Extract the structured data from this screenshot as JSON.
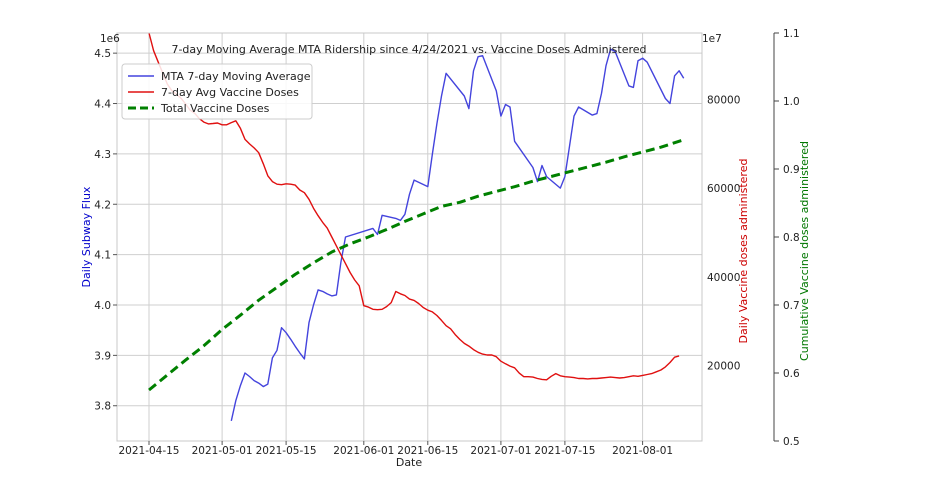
{
  "chart_data": {
    "type": "line",
    "title": "7-day Moving Average MTA Ridership since 4/24/2021 vs. Vaccine Doses Administered",
    "xlabel": "Date",
    "x_ticks": [
      "2021-04-15",
      "2021-05-01",
      "2021-05-15",
      "2021-06-01",
      "2021-06-15",
      "2021-07-01",
      "2021-07-15",
      "2021-08-01"
    ],
    "x_range": [
      "2021-04-08",
      "2021-08-14"
    ],
    "grid": true,
    "legend_position": "top-left",
    "axes": {
      "left": {
        "label": "Daily Subway Flux",
        "color": "#0000cc",
        "offset_label": "1e6",
        "range": [
          3.73,
          4.54
        ],
        "ticks": [
          3.8,
          3.9,
          4.0,
          4.1,
          4.2,
          4.3,
          4.4,
          4.5
        ],
        "tick_labels": [
          "3.8",
          "3.9",
          "4.0",
          "4.1",
          "4.2",
          "4.3",
          "4.4",
          "4.5"
        ]
      },
      "right1": {
        "label": "Daily Vaccine doses administered",
        "color": "#cc0000",
        "offset_label": "1e7",
        "range": [
          3000,
          95000
        ],
        "ticks": [
          20000,
          40000,
          60000,
          80000
        ],
        "tick_labels": [
          "20000",
          "40000",
          "60000",
          "80000"
        ]
      },
      "right2": {
        "label": "Cumulative Vaccine doses administered",
        "color": "#007700",
        "range": [
          0.5,
          1.1
        ],
        "ticks": [
          0.5,
          0.6,
          0.7,
          0.8,
          0.9,
          1.0,
          1.1
        ],
        "tick_labels": [
          "0.5",
          "0.6",
          "0.7",
          "0.8",
          "0.9",
          "1.0",
          "1.1"
        ]
      }
    },
    "series": [
      {
        "name": "MTA 7-day Moving Average",
        "axis": "left",
        "color": "#4444dd",
        "dash": "",
        "width": 1.4,
        "points": [
          [
            "2021-05-03",
            3.77
          ],
          [
            "2021-05-04",
            3.81
          ],
          [
            "2021-05-05",
            3.84
          ],
          [
            "2021-05-06",
            3.865
          ],
          [
            "2021-05-07",
            3.858
          ],
          [
            "2021-05-08",
            3.85
          ],
          [
            "2021-05-09",
            3.845
          ],
          [
            "2021-05-10",
            3.838
          ],
          [
            "2021-05-11",
            3.843
          ],
          [
            "2021-05-12",
            3.895
          ],
          [
            "2021-05-13",
            3.91
          ],
          [
            "2021-05-14",
            3.955
          ],
          [
            "2021-05-15",
            3.945
          ],
          [
            "2021-05-16",
            3.932
          ],
          [
            "2021-05-17",
            3.918
          ],
          [
            "2021-05-18",
            3.905
          ],
          [
            "2021-05-19",
            3.893
          ],
          [
            "2021-05-20",
            3.965
          ],
          [
            "2021-05-21",
            4.0
          ],
          [
            "2021-05-22",
            4.03
          ],
          [
            "2021-05-23",
            4.027
          ],
          [
            "2021-05-24",
            4.022
          ],
          [
            "2021-05-25",
            4.018
          ],
          [
            "2021-05-26",
            4.02
          ],
          [
            "2021-05-27",
            4.085
          ],
          [
            "2021-05-28",
            4.135
          ],
          [
            "2021-06-03",
            4.152
          ],
          [
            "2021-06-04",
            4.14
          ],
          [
            "2021-06-05",
            4.178
          ],
          [
            "2021-06-08",
            4.172
          ],
          [
            "2021-06-09",
            4.168
          ],
          [
            "2021-06-10",
            4.18
          ],
          [
            "2021-06-11",
            4.22
          ],
          [
            "2021-06-12",
            4.248
          ],
          [
            "2021-06-15",
            4.235
          ],
          [
            "2021-06-16",
            4.3
          ],
          [
            "2021-06-17",
            4.36
          ],
          [
            "2021-06-18",
            4.415
          ],
          [
            "2021-06-19",
            4.46
          ],
          [
            "2021-06-23",
            4.415
          ],
          [
            "2021-06-24",
            4.39
          ],
          [
            "2021-06-25",
            4.465
          ],
          [
            "2021-06-26",
            4.493
          ],
          [
            "2021-06-27",
            4.495
          ],
          [
            "2021-06-30",
            4.425
          ],
          [
            "2021-07-01",
            4.375
          ],
          [
            "2021-07-02",
            4.398
          ],
          [
            "2021-07-03",
            4.393
          ],
          [
            "2021-07-04",
            4.325
          ],
          [
            "2021-07-08",
            4.273
          ],
          [
            "2021-07-09",
            4.245
          ],
          [
            "2021-07-10",
            4.277
          ],
          [
            "2021-07-11",
            4.255
          ],
          [
            "2021-07-14",
            4.232
          ],
          [
            "2021-07-15",
            4.255
          ],
          [
            "2021-07-16",
            4.315
          ],
          [
            "2021-07-17",
            4.375
          ],
          [
            "2021-07-18",
            4.393
          ],
          [
            "2021-07-21",
            4.377
          ],
          [
            "2021-07-22",
            4.38
          ],
          [
            "2021-07-23",
            4.42
          ],
          [
            "2021-07-24",
            4.475
          ],
          [
            "2021-07-25",
            4.508
          ],
          [
            "2021-07-26",
            4.503
          ],
          [
            "2021-07-29",
            4.435
          ],
          [
            "2021-07-30",
            4.432
          ],
          [
            "2021-07-31",
            4.485
          ],
          [
            "2021-08-01",
            4.49
          ],
          [
            "2021-08-02",
            4.482
          ],
          [
            "2021-08-06",
            4.41
          ],
          [
            "2021-08-07",
            4.4
          ],
          [
            "2021-08-08",
            4.455
          ],
          [
            "2021-08-09",
            4.465
          ],
          [
            "2021-08-10",
            4.45
          ]
        ]
      },
      {
        "name": "7-day Avg Vaccine Doses",
        "axis": "right1",
        "color": "#e01010",
        "dash": "",
        "width": 1.4,
        "points": [
          [
            "2021-04-15",
            95000
          ],
          [
            "2021-04-16",
            91000
          ],
          [
            "2021-04-17",
            88500
          ],
          [
            "2021-04-18",
            86000
          ],
          [
            "2021-04-19",
            83500
          ],
          [
            "2021-04-20",
            82000
          ],
          [
            "2021-04-21",
            81200
          ],
          [
            "2021-04-22",
            80300
          ],
          [
            "2021-04-23",
            79000
          ],
          [
            "2021-04-24",
            77600
          ],
          [
            "2021-04-25",
            76900
          ],
          [
            "2021-04-26",
            75700
          ],
          [
            "2021-04-27",
            74900
          ],
          [
            "2021-04-28",
            74500
          ],
          [
            "2021-04-29",
            74600
          ],
          [
            "2021-04-30",
            74700
          ],
          [
            "2021-05-01",
            74300
          ],
          [
            "2021-05-02",
            74300
          ],
          [
            "2021-05-03",
            74800
          ],
          [
            "2021-05-04",
            75200
          ],
          [
            "2021-05-05",
            73500
          ],
          [
            "2021-05-06",
            71000
          ],
          [
            "2021-05-07",
            70000
          ],
          [
            "2021-05-08",
            69100
          ],
          [
            "2021-05-09",
            68000
          ],
          [
            "2021-05-10",
            65500
          ],
          [
            "2021-05-11",
            62800
          ],
          [
            "2021-05-12",
            61500
          ],
          [
            "2021-05-13",
            60900
          ],
          [
            "2021-05-14",
            60800
          ],
          [
            "2021-05-15",
            61000
          ],
          [
            "2021-05-16",
            60900
          ],
          [
            "2021-05-17",
            60700
          ],
          [
            "2021-05-18",
            59600
          ],
          [
            "2021-05-19",
            59000
          ],
          [
            "2021-05-20",
            57500
          ],
          [
            "2021-05-21",
            55500
          ],
          [
            "2021-05-22",
            53800
          ],
          [
            "2021-05-23",
            52300
          ],
          [
            "2021-05-24",
            51000
          ],
          [
            "2021-05-25",
            49000
          ],
          [
            "2021-05-26",
            47000
          ],
          [
            "2021-05-27",
            45000
          ],
          [
            "2021-05-28",
            43000
          ],
          [
            "2021-05-29",
            41000
          ],
          [
            "2021-05-30",
            39300
          ],
          [
            "2021-05-31",
            38000
          ],
          [
            "2021-06-01",
            33500
          ],
          [
            "2021-06-02",
            33200
          ],
          [
            "2021-06-03",
            32700
          ],
          [
            "2021-06-04",
            32600
          ],
          [
            "2021-06-05",
            32700
          ],
          [
            "2021-06-06",
            33300
          ],
          [
            "2021-06-07",
            34200
          ],
          [
            "2021-06-08",
            36700
          ],
          [
            "2021-06-09",
            36200
          ],
          [
            "2021-06-10",
            35800
          ],
          [
            "2021-06-11",
            35000
          ],
          [
            "2021-06-12",
            34700
          ],
          [
            "2021-06-13",
            34000
          ],
          [
            "2021-06-14",
            33100
          ],
          [
            "2021-06-15",
            32500
          ],
          [
            "2021-06-16",
            32100
          ],
          [
            "2021-06-17",
            31300
          ],
          [
            "2021-06-18",
            30200
          ],
          [
            "2021-06-19",
            29000
          ],
          [
            "2021-06-20",
            28300
          ],
          [
            "2021-06-21",
            27000
          ],
          [
            "2021-06-22",
            25900
          ],
          [
            "2021-06-23",
            25000
          ],
          [
            "2021-06-24",
            24400
          ],
          [
            "2021-06-25",
            23600
          ],
          [
            "2021-06-26",
            23000
          ],
          [
            "2021-06-27",
            22600
          ],
          [
            "2021-06-28",
            22400
          ],
          [
            "2021-06-29",
            22400
          ],
          [
            "2021-06-30",
            22000
          ],
          [
            "2021-07-01",
            21000
          ],
          [
            "2021-07-02",
            20400
          ],
          [
            "2021-07-03",
            19900
          ],
          [
            "2021-07-04",
            19500
          ],
          [
            "2021-07-05",
            18300
          ],
          [
            "2021-07-06",
            17500
          ],
          [
            "2021-07-07",
            17500
          ],
          [
            "2021-07-08",
            17400
          ],
          [
            "2021-07-09",
            17100
          ],
          [
            "2021-07-10",
            16900
          ],
          [
            "2021-07-11",
            16800
          ],
          [
            "2021-07-12",
            17600
          ],
          [
            "2021-07-13",
            18200
          ],
          [
            "2021-07-14",
            17700
          ],
          [
            "2021-07-15",
            17500
          ],
          [
            "2021-07-16",
            17400
          ],
          [
            "2021-07-17",
            17300
          ],
          [
            "2021-07-18",
            17100
          ],
          [
            "2021-07-19",
            17100
          ],
          [
            "2021-07-20",
            17000
          ],
          [
            "2021-07-21",
            17100
          ],
          [
            "2021-07-22",
            17100
          ],
          [
            "2021-07-23",
            17200
          ],
          [
            "2021-07-24",
            17300
          ],
          [
            "2021-07-25",
            17400
          ],
          [
            "2021-07-26",
            17300
          ],
          [
            "2021-07-27",
            17200
          ],
          [
            "2021-07-28",
            17300
          ],
          [
            "2021-07-29",
            17500
          ],
          [
            "2021-07-30",
            17700
          ],
          [
            "2021-07-31",
            17600
          ],
          [
            "2021-08-01",
            17800
          ],
          [
            "2021-08-02",
            18000
          ],
          [
            "2021-08-03",
            18200
          ],
          [
            "2021-08-04",
            18600
          ],
          [
            "2021-08-05",
            19000
          ],
          [
            "2021-08-06",
            19700
          ],
          [
            "2021-08-07",
            20700
          ],
          [
            "2021-08-08",
            21900
          ],
          [
            "2021-08-09",
            22200
          ]
        ]
      },
      {
        "name": "Total Vaccine Doses",
        "axis": "right2",
        "color": "#008000",
        "dash": "9,5",
        "width": 3,
        "points": [
          [
            "2021-04-15",
            0.575
          ],
          [
            "2021-04-19",
            0.597
          ],
          [
            "2021-04-23",
            0.619
          ],
          [
            "2021-04-27",
            0.64
          ],
          [
            "2021-05-01",
            0.664
          ],
          [
            "2021-05-05",
            0.685
          ],
          [
            "2021-05-09",
            0.707
          ],
          [
            "2021-05-13",
            0.726
          ],
          [
            "2021-05-17",
            0.745
          ],
          [
            "2021-05-21",
            0.762
          ],
          [
            "2021-05-25",
            0.778
          ],
          [
            "2021-05-29",
            0.79
          ],
          [
            "2021-06-02",
            0.8
          ],
          [
            "2021-06-06",
            0.811
          ],
          [
            "2021-06-10",
            0.823
          ],
          [
            "2021-06-14",
            0.834
          ],
          [
            "2021-06-18",
            0.845
          ],
          [
            "2021-06-22",
            0.851
          ],
          [
            "2021-06-26",
            0.86
          ],
          [
            "2021-06-30",
            0.867
          ],
          [
            "2021-07-04",
            0.874
          ],
          [
            "2021-07-08",
            0.882
          ],
          [
            "2021-07-12",
            0.889
          ],
          [
            "2021-07-16",
            0.896
          ],
          [
            "2021-07-20",
            0.903
          ],
          [
            "2021-07-24",
            0.91
          ],
          [
            "2021-07-28",
            0.918
          ],
          [
            "2021-08-01",
            0.925
          ],
          [
            "2021-08-05",
            0.932
          ],
          [
            "2021-08-10",
            0.943
          ]
        ]
      }
    ]
  }
}
